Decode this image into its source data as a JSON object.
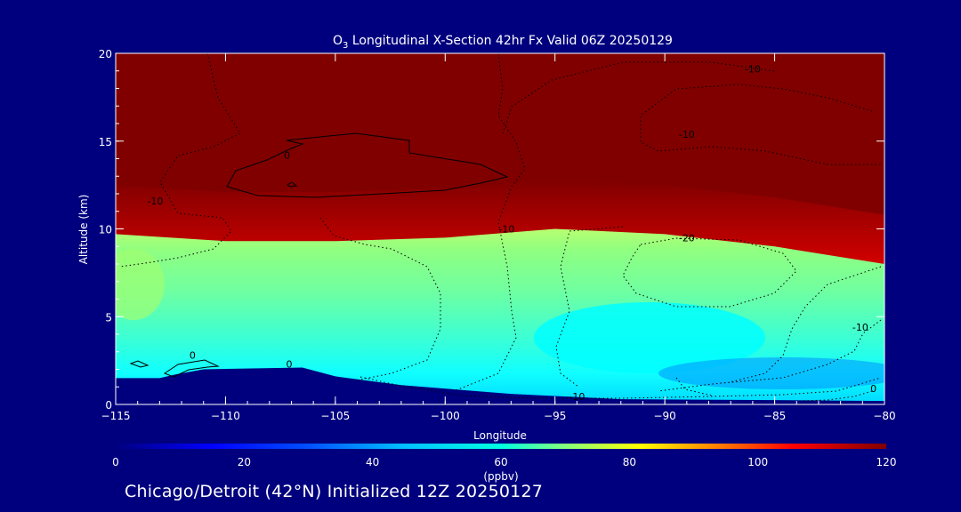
{
  "chart_data": {
    "type": "heatmap",
    "title": "O",
    "title_subscript": "3",
    "title_rest": " Longitudinal X-Section 42hr  Fx Valid 06Z 20250129",
    "xlabel": "Longitude",
    "ylabel": "Altitude (km)",
    "xlim": [
      -115,
      -80
    ],
    "ylim": [
      0,
      20
    ],
    "x_ticks": [
      -115,
      -110,
      -105,
      -100,
      -95,
      -90,
      -85,
      -80
    ],
    "x_tick_labels": [
      "−115",
      "−110",
      "−105",
      "−100",
      "−95",
      "−90",
      "−85",
      "−80"
    ],
    "y_ticks": [
      0,
      5,
      10,
      15,
      20
    ],
    "y_tick_labels": [
      "0",
      "5",
      "10",
      "15",
      "20"
    ],
    "colorbar": {
      "label": "(ppbv)",
      "range": [
        0,
        120
      ],
      "ticks": [
        0,
        20,
        40,
        60,
        80,
        100,
        120
      ],
      "tick_labels": [
        "0",
        "20",
        "40",
        "60",
        "80",
        "100",
        "120"
      ],
      "colors": [
        "#00007f",
        "#0000ff",
        "#0080ff",
        "#00ffff",
        "#80ff80",
        "#ffff00",
        "#ff8000",
        "#ff0000",
        "#800000"
      ]
    },
    "tropopause_height_km": [
      {
        "lon": -115,
        "alt": 11.3
      },
      {
        "lon": -110,
        "alt": 10.9
      },
      {
        "lon": -105,
        "alt": 10.9
      },
      {
        "lon": -100,
        "alt": 11.1
      },
      {
        "lon": -95,
        "alt": 11.6
      },
      {
        "lon": -90,
        "alt": 11.3
      },
      {
        "lon": -85,
        "alt": 10.6
      },
      {
        "lon": -80,
        "alt": 9.6
      }
    ],
    "terrain_km": [
      {
        "lon": -115,
        "alt": 1.5
      },
      {
        "lon": -113,
        "alt": 1.5
      },
      {
        "lon": -112.3,
        "alt": 1.7
      },
      {
        "lon": -111,
        "alt": 2.0
      },
      {
        "lon": -106.5,
        "alt": 2.1
      },
      {
        "lon": -105,
        "alt": 1.6
      },
      {
        "lon": -102,
        "alt": 1.1
      },
      {
        "lon": -97,
        "alt": 0.6
      },
      {
        "lon": -92,
        "alt": 0.3
      },
      {
        "lon": -85,
        "alt": 0.25
      },
      {
        "lon": -80,
        "alt": 0.2
      }
    ],
    "contour_labels": [
      {
        "text": "-10",
        "lon": -86,
        "alt": 18.9
      },
      {
        "text": "-10",
        "lon": -89,
        "alt": 15.2
      },
      {
        "text": "-10",
        "lon": -113.2,
        "alt": 11.4
      },
      {
        "text": "-10",
        "lon": -97.2,
        "alt": 9.8
      },
      {
        "text": "-20",
        "lon": -89,
        "alt": 9.3
      },
      {
        "text": "-10",
        "lon": -81.1,
        "alt": 4.2
      },
      {
        "text": "0",
        "lon": -107.2,
        "alt": 14.0
      },
      {
        "text": "0",
        "lon": -111.5,
        "alt": 2.6
      },
      {
        "text": "0",
        "lon": -107.1,
        "alt": 2.1
      },
      {
        "text": "-10",
        "lon": -94,
        "alt": 0.25
      },
      {
        "text": "0",
        "lon": -80.5,
        "alt": 0.7
      }
    ]
  },
  "footer": {
    "label": "Chicago/Detroit (42°N) Initialized 12Z 20250127"
  }
}
